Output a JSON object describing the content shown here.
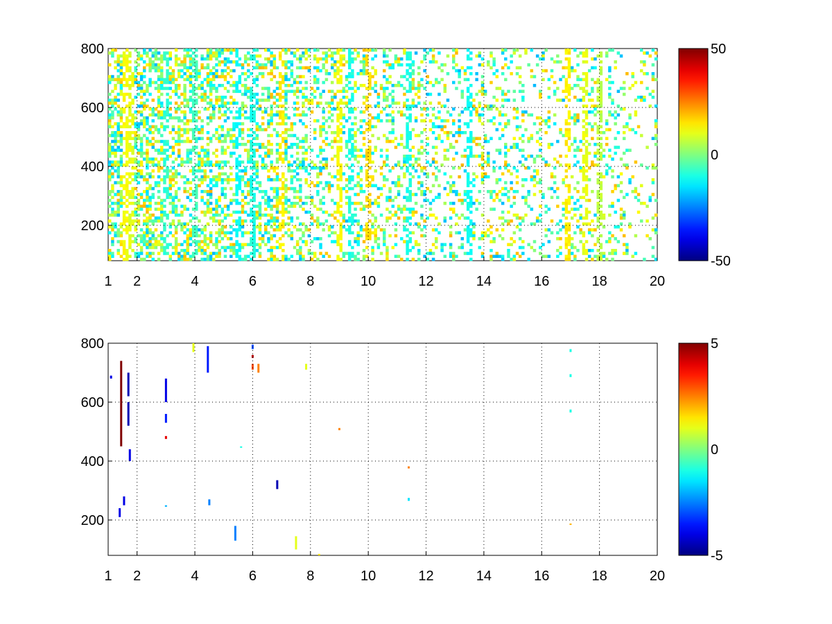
{
  "chart_data": [
    {
      "type": "heatmap",
      "title": "",
      "xlabel": "",
      "ylabel": "",
      "xlim": [
        1,
        20
      ],
      "ylim": [
        80,
        800
      ],
      "grid": true,
      "x_ticks": [
        1,
        2,
        4,
        6,
        8,
        10,
        12,
        14,
        16,
        18,
        20
      ],
      "y_ticks": [
        200,
        400,
        600,
        800
      ],
      "colorbar": {
        "clim": [
          -50,
          50
        ],
        "ticks": [
          -50,
          0,
          50
        ],
        "colormap": "jet",
        "placement": "right"
      },
      "density": [
        0.9,
        0.85,
        0.8,
        0.75,
        0.7,
        0.65,
        0.6,
        0.55,
        0.5,
        0.45,
        0.42,
        0.4,
        0.38,
        0.35,
        0.33,
        0.3,
        0.3,
        0.28,
        0.27,
        0.25
      ],
      "value_range": [
        -20,
        20
      ],
      "stripes": [
        {
          "x": 1.6,
          "value": 12
        },
        {
          "x": 1.8,
          "value": 10
        },
        {
          "x": 3.0,
          "value": -8
        },
        {
          "x": 4.0,
          "value": -6
        },
        {
          "x": 5.5,
          "value": -12
        },
        {
          "x": 6.0,
          "value": -10
        },
        {
          "x": 7.0,
          "value": 14
        },
        {
          "x": 9.0,
          "value": 12
        },
        {
          "x": 9.4,
          "value": -10
        },
        {
          "x": 10.0,
          "value": 16
        },
        {
          "x": 11.4,
          "value": -10
        },
        {
          "x": 13.5,
          "value": -12
        },
        {
          "x": 16.9,
          "value": 14
        },
        {
          "x": 17.5,
          "value": 10
        },
        {
          "x": 18.0,
          "value": 6
        }
      ]
    },
    {
      "type": "heatmap",
      "title": "",
      "xlabel": "",
      "ylabel": "",
      "xlim": [
        1,
        20
      ],
      "ylim": [
        80,
        800
      ],
      "grid": true,
      "x_ticks": [
        1,
        2,
        4,
        6,
        8,
        10,
        12,
        14,
        16,
        18,
        20
      ],
      "y_ticks": [
        200,
        400,
        600,
        800
      ],
      "colorbar": {
        "clim": [
          -5,
          5
        ],
        "ticks": [
          -5,
          0,
          5
        ],
        "colormap": "jet",
        "placement": "right"
      },
      "cells": [
        {
          "x": 1.45,
          "y0": 450,
          "y1": 740,
          "value": 5
        },
        {
          "x": 1.4,
          "y0": 210,
          "y1": 240,
          "value": -4
        },
        {
          "x": 1.55,
          "y0": 250,
          "y1": 280,
          "value": -4
        },
        {
          "x": 1.7,
          "y0": 520,
          "y1": 600,
          "value": -4.5
        },
        {
          "x": 1.7,
          "y0": 620,
          "y1": 700,
          "value": -4.5
        },
        {
          "x": 1.75,
          "y0": 400,
          "y1": 440,
          "value": -4
        },
        {
          "x": 1.1,
          "y0": 680,
          "y1": 690,
          "value": -4
        },
        {
          "x": 3.0,
          "y0": 600,
          "y1": 680,
          "value": -4
        },
        {
          "x": 3.0,
          "y0": 530,
          "y1": 560,
          "value": -3.5
        },
        {
          "x": 3.0,
          "y0": 475,
          "y1": 485,
          "value": 4
        },
        {
          "x": 3.0,
          "y0": 245,
          "y1": 250,
          "value": -2
        },
        {
          "x": 3.95,
          "y0": 770,
          "y1": 800,
          "value": 1
        },
        {
          "x": 4.45,
          "y0": 700,
          "y1": 790,
          "value": -3.5
        },
        {
          "x": 4.5,
          "y0": 250,
          "y1": 270,
          "value": -2.5
        },
        {
          "x": 5.4,
          "y0": 130,
          "y1": 180,
          "value": -2.5
        },
        {
          "x": 5.6,
          "y0": 445,
          "y1": 450,
          "value": -1
        },
        {
          "x": 6.0,
          "y0": 780,
          "y1": 795,
          "value": -3
        },
        {
          "x": 6.0,
          "y0": 750,
          "y1": 760,
          "value": 4.5
        },
        {
          "x": 6.0,
          "y0": 710,
          "y1": 730,
          "value": 3
        },
        {
          "x": 6.2,
          "y0": 700,
          "y1": 730,
          "value": 2.5
        },
        {
          "x": 6.85,
          "y0": 305,
          "y1": 335,
          "value": -4.5
        },
        {
          "x": 7.5,
          "y0": 100,
          "y1": 145,
          "value": 1
        },
        {
          "x": 8.3,
          "y0": 80,
          "y1": 85,
          "value": 1.5
        },
        {
          "x": 7.85,
          "y0": 710,
          "y1": 730,
          "value": 1
        },
        {
          "x": 9.0,
          "y0": 505,
          "y1": 512,
          "value": 2.5
        },
        {
          "x": 11.4,
          "y0": 375,
          "y1": 382,
          "value": 2.5
        },
        {
          "x": 11.4,
          "y0": 265,
          "y1": 275,
          "value": -1.5
        },
        {
          "x": 17.0,
          "y0": 770,
          "y1": 780,
          "value": -1
        },
        {
          "x": 17.0,
          "y0": 685,
          "y1": 695,
          "value": -1
        },
        {
          "x": 17.0,
          "y0": 565,
          "y1": 575,
          "value": -1
        },
        {
          "x": 17.0,
          "y0": 185,
          "y1": 188,
          "value": 2
        }
      ]
    }
  ]
}
